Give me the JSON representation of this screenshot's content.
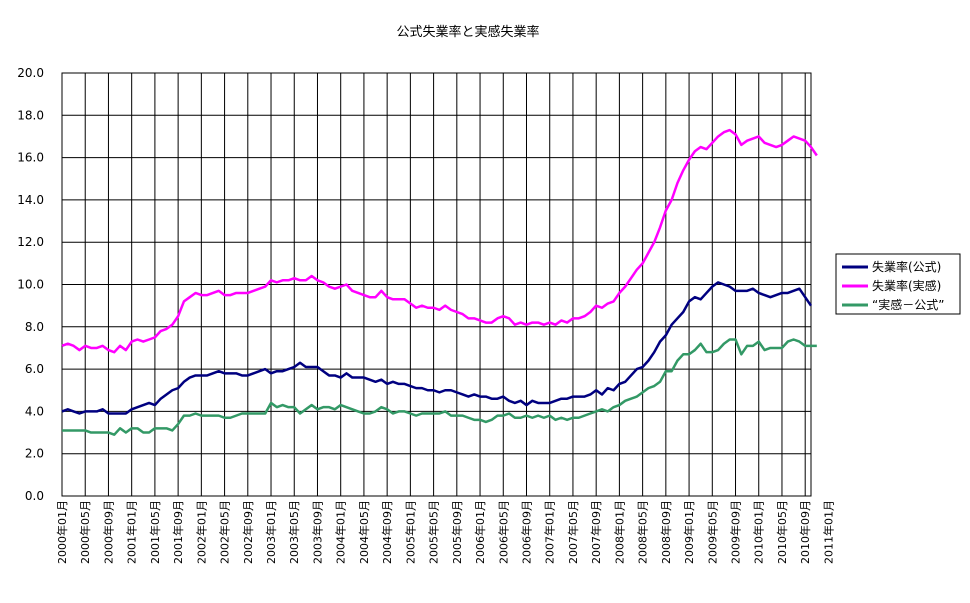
{
  "chart_data": {
    "type": "line",
    "title": "公式失業率と実感失業率",
    "xlabel": "",
    "ylabel": "",
    "ylim": [
      0,
      20
    ],
    "yticks": [
      "0.0",
      "2.0",
      "4.0",
      "6.0",
      "8.0",
      "10.0",
      "12.0",
      "14.0",
      "16.0",
      "18.0",
      "20.0"
    ],
    "grid": true,
    "legend_position": "right",
    "x_tick_labels": [
      "2000年01月",
      "2000年05月",
      "2000年09月",
      "2001年01月",
      "2001年05月",
      "2001年09月",
      "2002年01月",
      "2002年05月",
      "2002年09月",
      "2003年01月",
      "2003年05月",
      "2003年09月",
      "2004年01月",
      "2004年05月",
      "2004年09月",
      "2005年01月",
      "2005年05月",
      "2005年09月",
      "2006年01月",
      "2006年05月",
      "2006年09月",
      "2007年01月",
      "2007年05月",
      "2007年09月",
      "2008年01月",
      "2008年05月",
      "2008年09月",
      "2009年01月",
      "2009年05月",
      "2009年09月",
      "2010年01月",
      "2010年05月",
      "2010年09月",
      "2011年01月"
    ],
    "series": [
      {
        "name": "失業率(公式)",
        "color": "#000080",
        "values": [
          4.0,
          4.1,
          4.0,
          3.9,
          4.0,
          4.0,
          4.0,
          4.1,
          3.9,
          3.9,
          3.9,
          3.9,
          4.1,
          4.2,
          4.3,
          4.4,
          4.3,
          4.6,
          4.8,
          5.0,
          5.1,
          5.4,
          5.6,
          5.7,
          5.7,
          5.7,
          5.8,
          5.9,
          5.8,
          5.8,
          5.8,
          5.7,
          5.7,
          5.8,
          5.9,
          6.0,
          5.8,
          5.9,
          5.9,
          6.0,
          6.1,
          6.3,
          6.1,
          6.1,
          6.1,
          5.9,
          5.7,
          5.7,
          5.6,
          5.8,
          5.6,
          5.6,
          5.6,
          5.5,
          5.4,
          5.5,
          5.3,
          5.4,
          5.3,
          5.3,
          5.2,
          5.1,
          5.1,
          5.0,
          5.0,
          4.9,
          5.0,
          5.0,
          4.9,
          4.8,
          4.7,
          4.8,
          4.7,
          4.7,
          4.6,
          4.6,
          4.7,
          4.5,
          4.4,
          4.5,
          4.3,
          4.5,
          4.4,
          4.4,
          4.4,
          4.5,
          4.6,
          4.6,
          4.7,
          4.7,
          4.7,
          4.8,
          5.0,
          4.8,
          5.1,
          5.0,
          5.3,
          5.4,
          5.7,
          6.0,
          6.1,
          6.4,
          6.8,
          7.3,
          7.6,
          8.1,
          8.4,
          8.7,
          9.2,
          9.4,
          9.3,
          9.6,
          9.9,
          10.1,
          10.0,
          9.9,
          9.7,
          9.7,
          9.7,
          9.8,
          9.6,
          9.5,
          9.4,
          9.5,
          9.6,
          9.6,
          9.7,
          9.8,
          9.4,
          9.0
        ]
      },
      {
        "name": "失業率(実感)",
        "color": "#FF00FF",
        "values": [
          7.1,
          7.2,
          7.1,
          6.9,
          7.1,
          7.0,
          7.0,
          7.1,
          6.9,
          6.8,
          7.1,
          6.9,
          7.3,
          7.4,
          7.3,
          7.4,
          7.5,
          7.8,
          7.9,
          8.1,
          8.5,
          9.2,
          9.4,
          9.6,
          9.5,
          9.5,
          9.6,
          9.7,
          9.5,
          9.5,
          9.6,
          9.6,
          9.6,
          9.7,
          9.8,
          9.9,
          10.2,
          10.1,
          10.2,
          10.2,
          10.3,
          10.2,
          10.2,
          10.4,
          10.2,
          10.1,
          9.9,
          9.8,
          9.9,
          10.0,
          9.7,
          9.6,
          9.5,
          9.4,
          9.4,
          9.7,
          9.4,
          9.3,
          9.3,
          9.3,
          9.1,
          8.9,
          9.0,
          8.9,
          8.9,
          8.8,
          9.0,
          8.8,
          8.7,
          8.6,
          8.4,
          8.4,
          8.3,
          8.2,
          8.2,
          8.4,
          8.5,
          8.4,
          8.1,
          8.2,
          8.1,
          8.2,
          8.2,
          8.1,
          8.2,
          8.1,
          8.3,
          8.2,
          8.4,
          8.4,
          8.5,
          8.7,
          9.0,
          8.9,
          9.1,
          9.2,
          9.6,
          9.9,
          10.3,
          10.7,
          11.0,
          11.5,
          12.0,
          12.7,
          13.5,
          14.0,
          14.8,
          15.4,
          15.9,
          16.3,
          16.5,
          16.4,
          16.7,
          17.0,
          17.2,
          17.3,
          17.1,
          16.6,
          16.8,
          16.9,
          17.0,
          16.7,
          16.6,
          16.5,
          16.6,
          16.8,
          17.0,
          16.9,
          16.8,
          16.5,
          16.1
        ]
      },
      {
        "name": "“実感－公式”",
        "color": "#339966",
        "values": [
          3.1,
          3.1,
          3.1,
          3.1,
          3.1,
          3.0,
          3.0,
          3.0,
          3.0,
          2.9,
          3.2,
          3.0,
          3.2,
          3.2,
          3.0,
          3.0,
          3.2,
          3.2,
          3.2,
          3.1,
          3.4,
          3.8,
          3.8,
          3.9,
          3.8,
          3.8,
          3.8,
          3.8,
          3.7,
          3.7,
          3.8,
          3.9,
          3.9,
          3.9,
          3.9,
          3.9,
          4.4,
          4.2,
          4.3,
          4.2,
          4.2,
          3.9,
          4.1,
          4.3,
          4.1,
          4.2,
          4.2,
          4.1,
          4.3,
          4.2,
          4.1,
          4.0,
          3.9,
          3.9,
          4.0,
          4.2,
          4.1,
          3.9,
          4.0,
          4.0,
          3.9,
          3.8,
          3.9,
          3.9,
          3.9,
          3.9,
          4.0,
          3.8,
          3.8,
          3.8,
          3.7,
          3.6,
          3.6,
          3.5,
          3.6,
          3.8,
          3.8,
          3.9,
          3.7,
          3.7,
          3.8,
          3.7,
          3.8,
          3.7,
          3.8,
          3.6,
          3.7,
          3.6,
          3.7,
          3.7,
          3.8,
          3.9,
          4.0,
          4.1,
          4.0,
          4.2,
          4.3,
          4.5,
          4.6,
          4.7,
          4.9,
          5.1,
          5.2,
          5.4,
          5.9,
          5.9,
          6.4,
          6.7,
          6.7,
          6.9,
          7.2,
          6.8,
          6.8,
          6.9,
          7.2,
          7.4,
          7.4,
          6.7,
          7.1,
          7.1,
          7.3,
          6.9,
          7.0,
          7.0,
          7.0,
          7.3,
          7.4,
          7.3,
          7.1,
          7.1,
          7.1
        ]
      }
    ]
  }
}
